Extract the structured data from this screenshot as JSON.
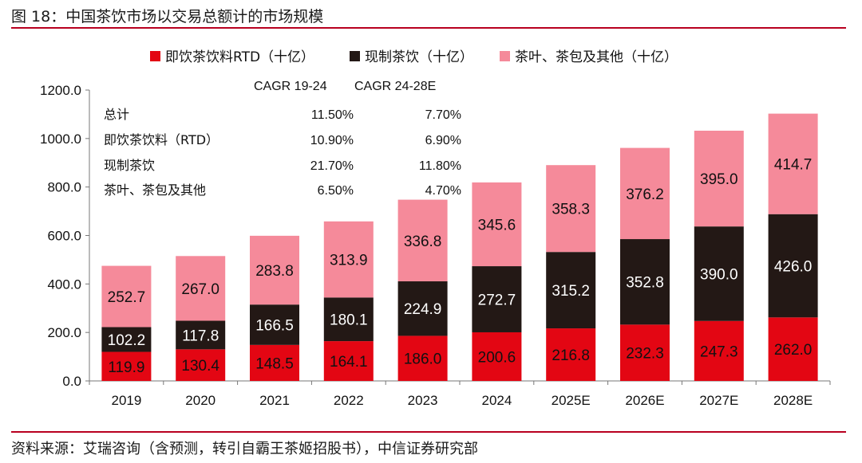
{
  "figure_title": "图 18：中国茶饮市场以交易总额计的市场规模",
  "source_note": "资料来源：艾瑞咨询（含预测，转引自霸王茶姬招股书），中信证券研究部",
  "colors": {
    "rtd": "#e30613",
    "made": "#231815",
    "leaf": "#f58a9a",
    "rule": "#b8001f"
  },
  "chart_data": {
    "type": "bar",
    "stacked": true,
    "categories": [
      "2019",
      "2020",
      "2021",
      "2022",
      "2023",
      "2024",
      "2025E",
      "2026E",
      "2027E",
      "2028E"
    ],
    "series": [
      {
        "name": "即饮茶饮料RTD（十亿）",
        "values": [
          119.9,
          130.4,
          148.5,
          164.1,
          186.0,
          200.6,
          216.8,
          232.3,
          247.3,
          262.0
        ]
      },
      {
        "name": "现制茶饮（十亿）",
        "values": [
          102.2,
          117.8,
          166.5,
          180.1,
          224.9,
          272.7,
          315.2,
          352.8,
          390.0,
          426.0
        ]
      },
      {
        "name": "茶叶、茶包及其他（十亿）",
        "values": [
          252.7,
          267.0,
          283.8,
          313.9,
          336.8,
          345.6,
          358.3,
          376.2,
          395.0,
          414.7
        ]
      }
    ],
    "ylim": [
      0,
      1200
    ],
    "yticks": [
      "0.0",
      "200.0",
      "400.0",
      "600.0",
      "800.0",
      "1000.0",
      "1200.0"
    ],
    "legend_position": "top",
    "grid": false,
    "cagr_table": {
      "headers": [
        "CAGR 19-24",
        "CAGR 24-28E"
      ],
      "rows": [
        {
          "label": "总计",
          "v1": "11.50%",
          "v2": "7.70%"
        },
        {
          "label": "即饮茶饮料（RTD）",
          "v1": "10.90%",
          "v2": "6.90%"
        },
        {
          "label": "现制茶饮",
          "v1": "21.70%",
          "v2": "11.80%"
        },
        {
          "label": "茶叶、茶包及其他",
          "v1": "6.50%",
          "v2": "4.70%"
        }
      ]
    }
  }
}
